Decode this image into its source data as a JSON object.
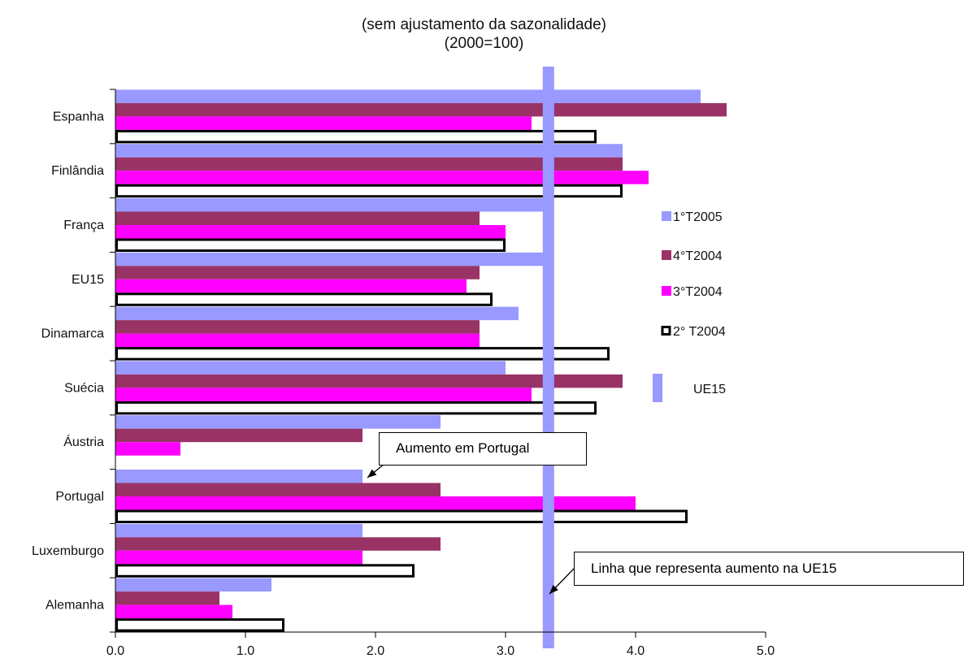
{
  "chart_data": {
    "type": "bar",
    "orientation": "horizontal",
    "title_lines": [
      "(sem ajustamento da sazonalidade)",
      "(2000=100)"
    ],
    "categories": [
      "Espanha",
      "Finlândia",
      "França",
      "EU15",
      "Dinamarca",
      "Suécia",
      "Áustria",
      "Portugal",
      "Luxemburgo",
      "Alemanha"
    ],
    "series": [
      {
        "name": "1°T2005",
        "color": "#9999ff",
        "style": "solid",
        "values": [
          4.5,
          3.9,
          3.3,
          3.3,
          3.1,
          3.0,
          2.5,
          1.9,
          1.9,
          1.2
        ]
      },
      {
        "name": "4°T2004",
        "color": "#993366",
        "style": "solid",
        "values": [
          4.7,
          3.9,
          2.8,
          2.8,
          2.8,
          3.9,
          1.9,
          2.5,
          2.5,
          0.8
        ]
      },
      {
        "name": "3°T2004",
        "color": "#ff00ff",
        "style": "solid",
        "values": [
          3.2,
          4.1,
          3.0,
          2.7,
          2.8,
          3.2,
          0.5,
          4.0,
          1.9,
          0.9
        ]
      },
      {
        "name": "2° T2004",
        "color": "#000000",
        "style": "outline",
        "values": [
          3.7,
          3.9,
          3.0,
          2.9,
          3.8,
          3.7,
          0.0,
          4.4,
          2.3,
          1.3
        ]
      }
    ],
    "reference_line": {
      "name": "UE15",
      "value": 3.33,
      "color": "#9999ff"
    },
    "xlim": [
      0,
      5
    ],
    "xticks": [
      "0.0",
      "1.0",
      "2.0",
      "3.0",
      "4.0",
      "5.0"
    ],
    "legend_position": "right",
    "annotations": [
      {
        "text": "Aumento em Portugal",
        "points_to": {
          "category": "Portugal",
          "series": "1°T2005",
          "value": 1.9
        }
      },
      {
        "text": "Linha que representa aumento na UE15",
        "points_to": {
          "line": "UE15",
          "value": 3.33
        }
      }
    ]
  }
}
